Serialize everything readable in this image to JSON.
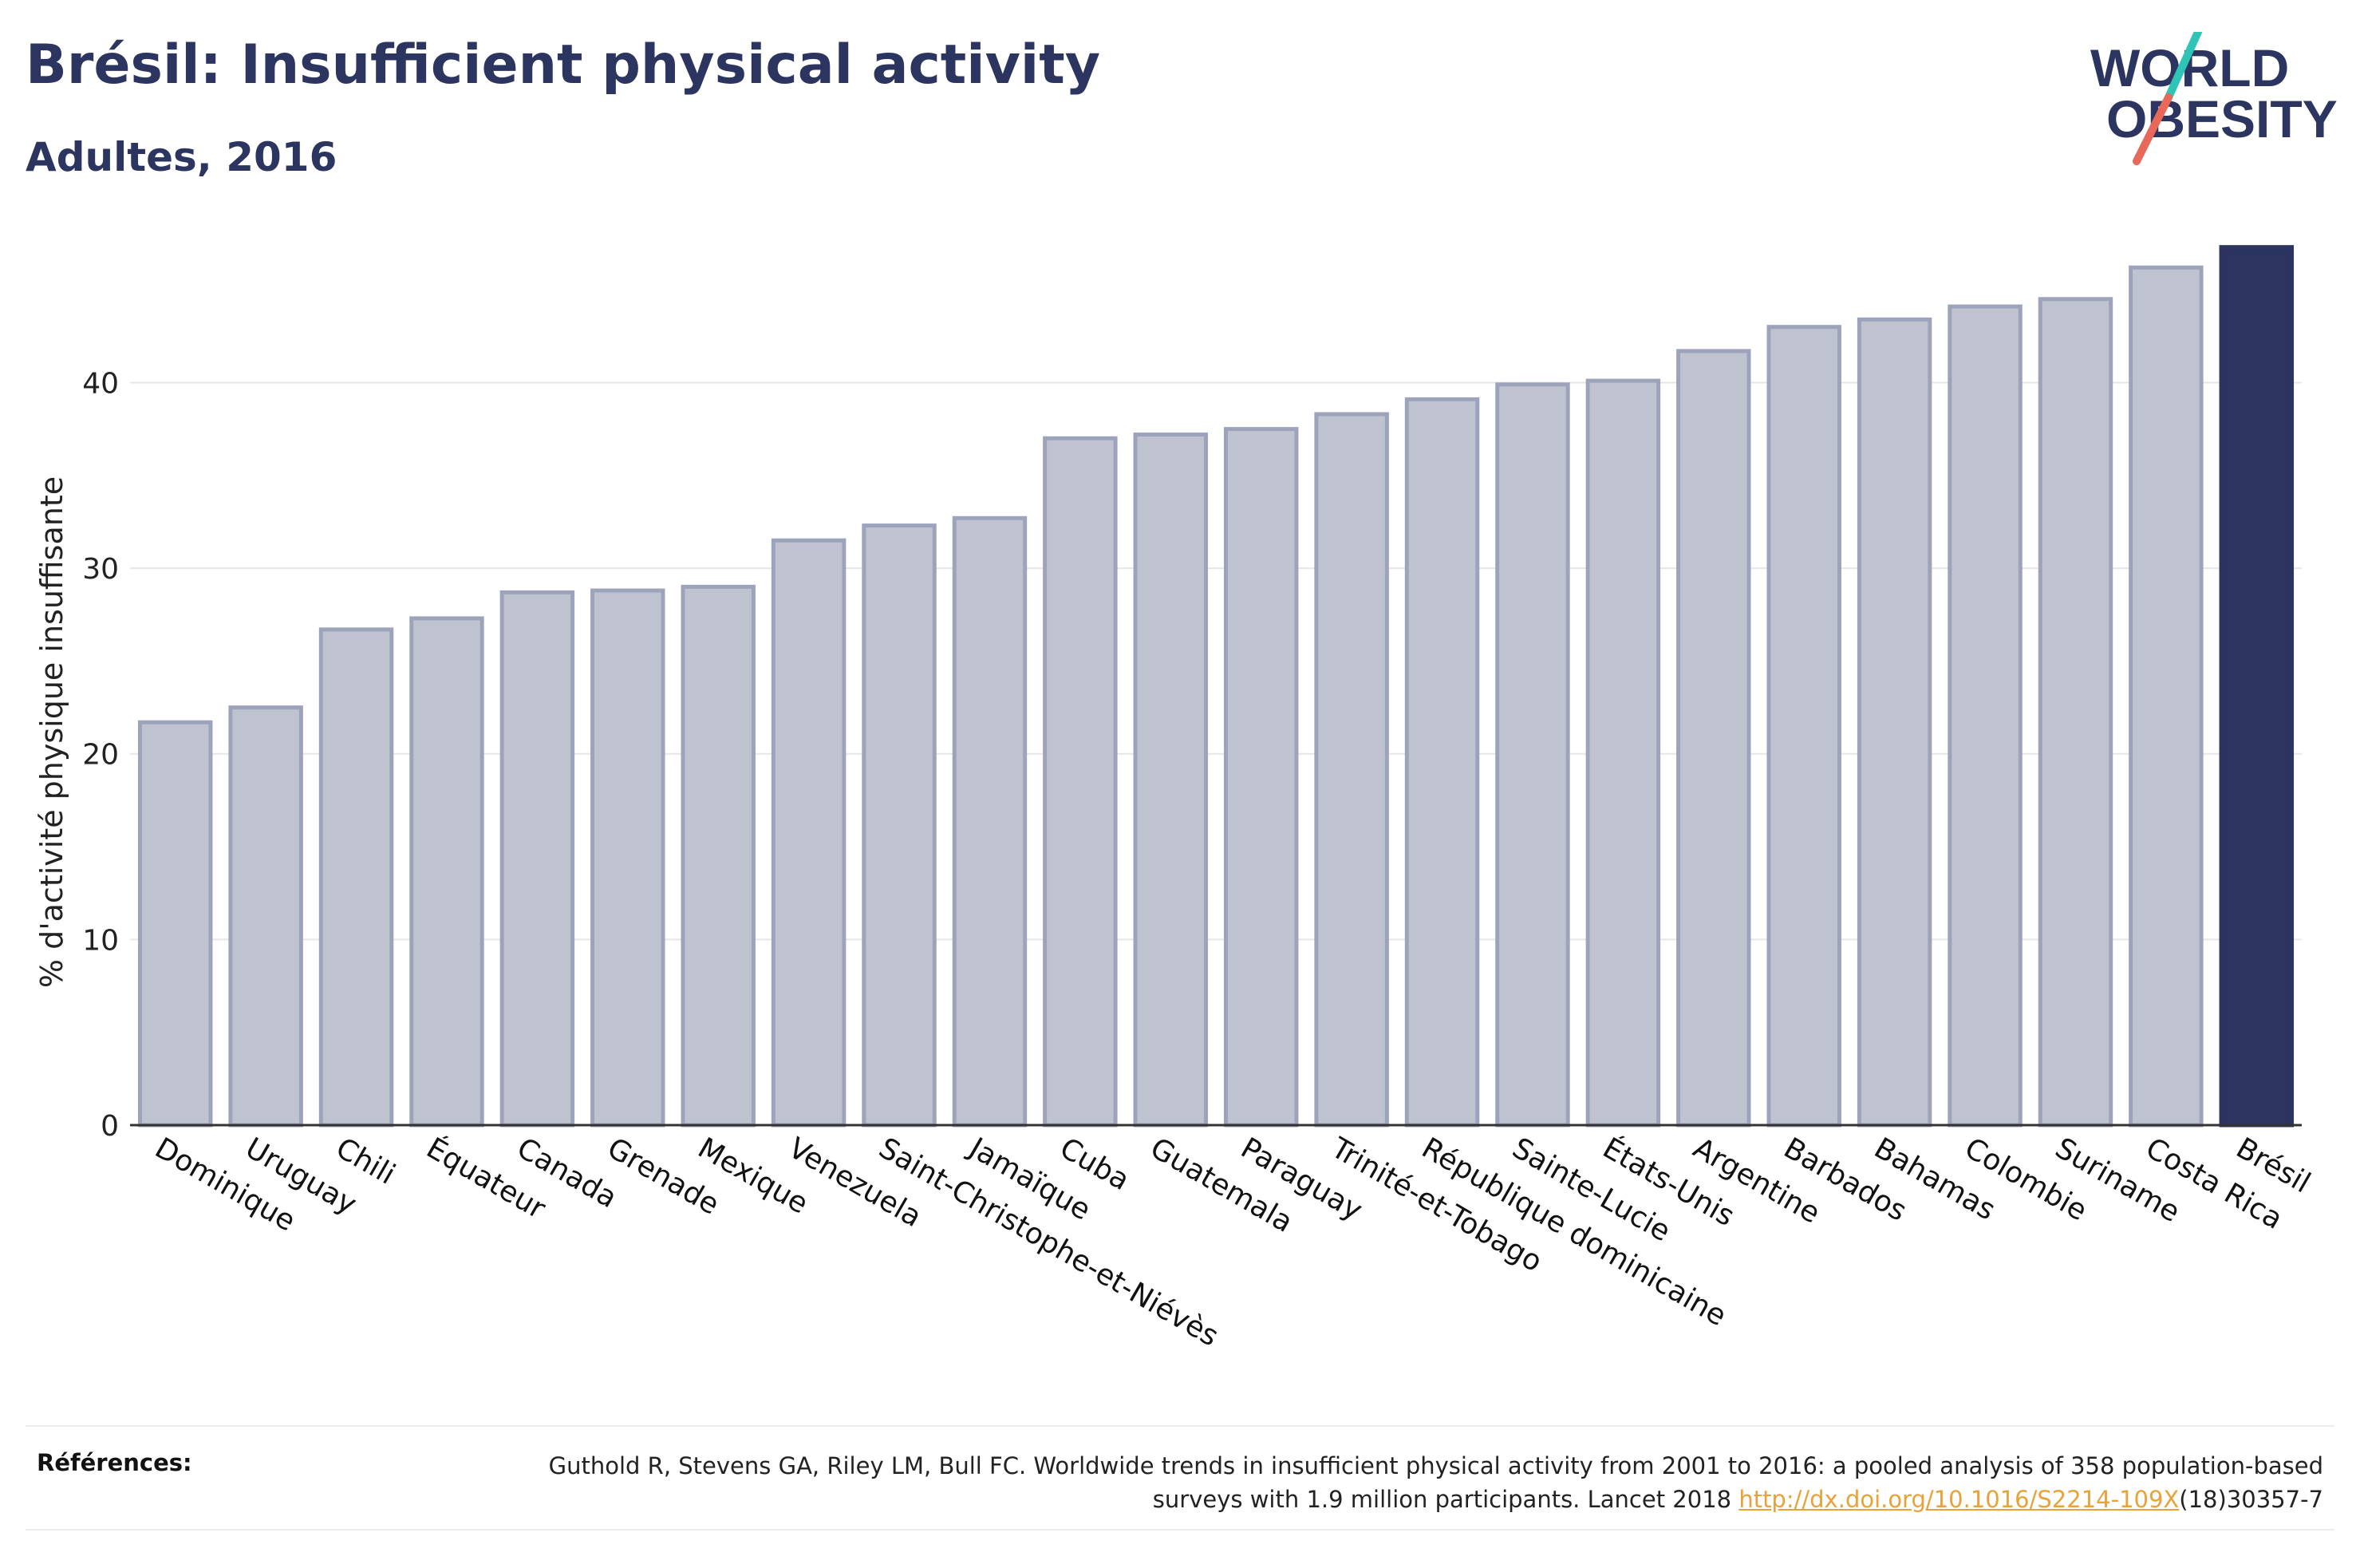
{
  "header": {
    "title": "Brésil: Insufficient physical activity",
    "subtitle": "Adultes, 2016"
  },
  "logo": {
    "line1": "WORLD",
    "line2": "OBESITY",
    "slash_color_top": "#2ec4b6",
    "slash_color_bottom": "#e8685a"
  },
  "references": {
    "label": "Références:",
    "text_before": "Guthold R, Stevens GA, Riley LM, Bull FC. Worldwide trends in insufficient physical activity from 2001 to 2016: a pooled analysis of 358 population-based surveys with 1.9 million participants. Lancet 2018 ",
    "link": "http://dx.doi.org/10.1016/S2214-109X",
    "text_after": "(18)30357-7"
  },
  "colors": {
    "bar_fill": "#bfc3d0",
    "bar_stroke": "#9da3bb",
    "highlight": "#2b3560",
    "grid": "#e6e6e6",
    "axis": "#333333"
  },
  "chart_data": {
    "type": "bar",
    "ylabel": "% d'activité physique insuffisante",
    "ylim": [
      0,
      47.5
    ],
    "yticks": [
      0,
      10,
      20,
      30,
      40
    ],
    "grid": true,
    "highlight_category": "Brésil",
    "categories": [
      "Dominique",
      "Uruguay",
      "Chili",
      "Équateur",
      "Canada",
      "Grenade",
      "Mexique",
      "Venezuela",
      "Saint-Christophe-et-Niévès",
      "Jamaïque",
      "Cuba",
      "Guatemala",
      "Paraguay",
      "Trinité-et-Tobago",
      "République dominicaine",
      "Sainte-Lucie",
      "États-Unis",
      "Argentine",
      "Barbados",
      "Bahamas",
      "Colombie",
      "Suriname",
      "Costa Rica",
      "Brésil"
    ],
    "values": [
      21.7,
      22.5,
      26.7,
      27.3,
      28.7,
      28.8,
      29.0,
      31.5,
      32.3,
      32.7,
      37.0,
      37.2,
      37.5,
      38.3,
      39.1,
      39.9,
      40.1,
      41.7,
      43.0,
      43.4,
      44.1,
      44.5,
      46.2,
      47.3
    ]
  }
}
